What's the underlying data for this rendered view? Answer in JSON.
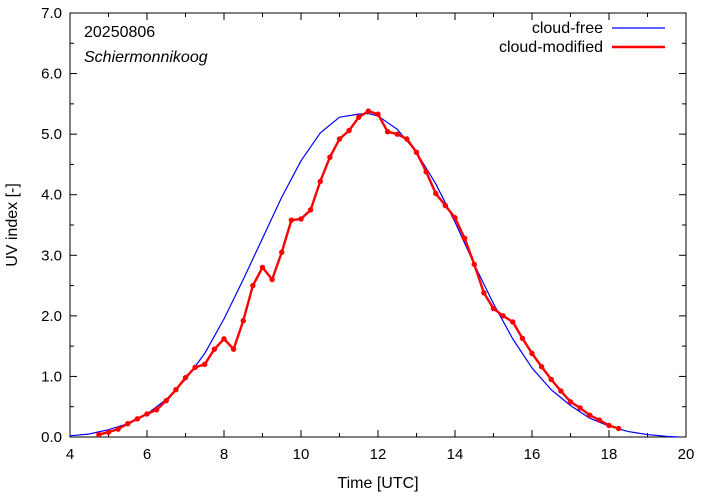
{
  "chart_data": {
    "type": "line",
    "xlabel": "Time  [UTC]",
    "ylabel": "UV index  [-]",
    "xlim": [
      4,
      20
    ],
    "ylim": [
      0,
      7
    ],
    "xticks": [
      4,
      6,
      8,
      10,
      12,
      14,
      16,
      18,
      20
    ],
    "xtick_labels": [
      "4",
      "6",
      "8",
      "10",
      "12",
      "14",
      "16",
      "18",
      "20"
    ],
    "yticks": [
      0,
      1,
      2,
      3,
      4,
      5,
      6,
      7
    ],
    "ytick_labels": [
      "0.0",
      "1.0",
      "2.0",
      "3.0",
      "4.0",
      "5.0",
      "6.0",
      "7.0"
    ],
    "legend_position": "top-right",
    "annotations": [
      "20250806",
      "Schiermonnikoog"
    ],
    "series": [
      {
        "name": "cloud-free",
        "color": "#0000ff",
        "markers": false,
        "x": [
          4.0,
          4.5,
          5.0,
          5.5,
          6.0,
          6.5,
          7.0,
          7.5,
          8.0,
          8.5,
          9.0,
          9.5,
          10.0,
          10.5,
          11.0,
          11.5,
          11.75,
          12.0,
          12.5,
          13.0,
          13.5,
          14.0,
          14.5,
          15.0,
          15.5,
          16.0,
          16.5,
          17.0,
          17.5,
          18.0,
          18.5,
          19.0,
          19.5,
          19.8
        ],
        "y": [
          0.02,
          0.05,
          0.12,
          0.22,
          0.38,
          0.62,
          0.95,
          1.38,
          1.95,
          2.6,
          3.28,
          3.96,
          4.56,
          5.02,
          5.28,
          5.33,
          5.34,
          5.3,
          5.08,
          4.7,
          4.18,
          3.55,
          2.85,
          2.2,
          1.62,
          1.14,
          0.78,
          0.52,
          0.31,
          0.18,
          0.09,
          0.04,
          0.01,
          0.0
        ]
      },
      {
        "name": "cloud-modified",
        "color": "#ff0000",
        "markers": true,
        "x": [
          4.75,
          5.0,
          5.25,
          5.5,
          5.75,
          6.0,
          6.25,
          6.5,
          6.75,
          7.0,
          7.25,
          7.5,
          7.75,
          8.0,
          8.25,
          8.5,
          8.75,
          9.0,
          9.25,
          9.5,
          9.75,
          10.0,
          10.25,
          10.5,
          10.75,
          11.0,
          11.25,
          11.5,
          11.75,
          12.0,
          12.25,
          12.5,
          12.75,
          13.0,
          13.25,
          13.5,
          13.75,
          14.0,
          14.25,
          14.5,
          14.75,
          15.0,
          15.25,
          15.5,
          15.75,
          16.0,
          16.25,
          16.5,
          16.75,
          17.0,
          17.25,
          17.5,
          17.75,
          18.0,
          18.25
        ],
        "y": [
          0.04,
          0.08,
          0.13,
          0.22,
          0.3,
          0.38,
          0.45,
          0.6,
          0.78,
          0.98,
          1.15,
          1.2,
          1.45,
          1.62,
          1.45,
          1.92,
          2.5,
          2.8,
          2.6,
          3.05,
          3.58,
          3.6,
          3.75,
          4.22,
          4.62,
          4.92,
          5.06,
          5.28,
          5.38,
          5.33,
          5.04,
          5.0,
          4.92,
          4.7,
          4.38,
          4.02,
          3.82,
          3.62,
          3.28,
          2.85,
          2.38,
          2.12,
          2.0,
          1.9,
          1.63,
          1.38,
          1.16,
          0.95,
          0.76,
          0.58,
          0.48,
          0.36,
          0.28,
          0.19,
          0.14
        ]
      }
    ]
  }
}
